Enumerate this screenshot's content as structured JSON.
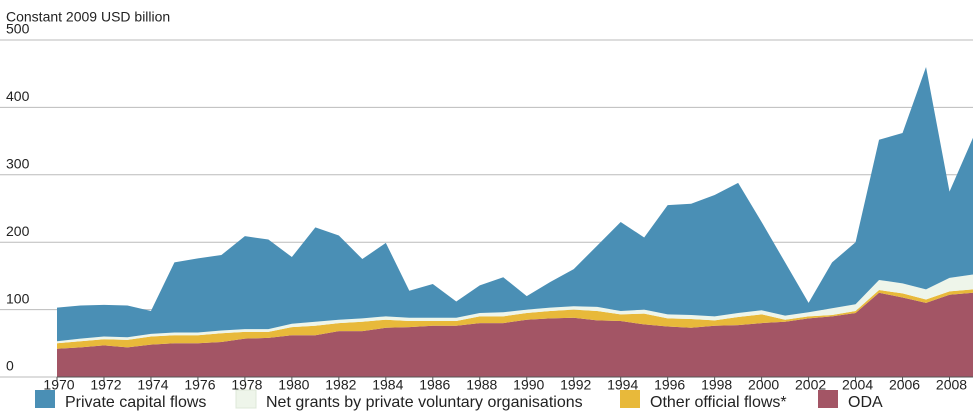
{
  "chart_data": {
    "type": "stacked_area",
    "y_label": "Constant 2009 USD billion",
    "x": [
      1970,
      1971,
      1972,
      1973,
      1974,
      1975,
      1976,
      1977,
      1978,
      1979,
      1980,
      1981,
      1982,
      1983,
      1984,
      1985,
      1986,
      1987,
      1988,
      1989,
      1990,
      1991,
      1992,
      1993,
      1994,
      1995,
      1996,
      1997,
      1998,
      1999,
      2000,
      2001,
      2002,
      2003,
      2004,
      2005,
      2006,
      2007,
      2008,
      2009
    ],
    "xlim": [
      1970,
      2009
    ],
    "xticks": [
      1970,
      1972,
      1974,
      1976,
      1978,
      1980,
      1982,
      1984,
      1986,
      1988,
      1990,
      1992,
      1994,
      1996,
      1998,
      2000,
      2002,
      2004,
      2006,
      2008
    ],
    "ylim": [
      0,
      500
    ],
    "yticks": [
      0,
      100,
      200,
      300,
      400,
      500
    ],
    "grid": true,
    "legend": "bottom",
    "series": [
      {
        "name": "Private capital flows",
        "color": "#4a8fb5",
        "values": [
          50,
          49,
          47,
          47,
          34,
          104,
          110,
          112,
          138,
          133,
          99,
          140,
          125,
          88,
          109,
          40,
          50,
          24,
          41,
          52,
          20,
          38,
          55,
          91,
          132,
          107,
          162,
          165,
          180,
          193,
          131,
          79,
          14,
          68,
          92,
          208,
          223,
          330,
          128,
          203
        ]
      },
      {
        "name": "Net grants by private voluntary organisations",
        "color": "#eef5ea",
        "values": [
          3,
          4,
          4,
          4,
          4,
          4,
          4,
          4,
          4,
          4,
          5,
          6,
          5,
          5,
          5,
          5,
          5,
          5,
          5,
          6,
          5,
          5,
          5,
          6,
          5,
          6,
          6,
          6,
          6,
          6,
          6,
          6,
          6,
          10,
          10,
          15,
          15,
          15,
          20,
          22
        ]
      },
      {
        "name": "Other official flows*",
        "color": "#e8b93a",
        "values": [
          8,
          9,
          9,
          11,
          12,
          12,
          12,
          13,
          10,
          9,
          12,
          14,
          12,
          14,
          12,
          9,
          7,
          7,
          10,
          10,
          10,
          11,
          12,
          14,
          10,
          16,
          12,
          13,
          8,
          12,
          13,
          3,
          3,
          2,
          3,
          4,
          6,
          5,
          5,
          5
        ]
      },
      {
        "name": "ODA",
        "color": "#a35565",
        "values": [
          42,
          44,
          47,
          44,
          48,
          50,
          50,
          52,
          57,
          58,
          62,
          62,
          68,
          68,
          73,
          74,
          76,
          76,
          80,
          80,
          85,
          87,
          88,
          84,
          83,
          78,
          75,
          73,
          76,
          77,
          80,
          82,
          87,
          90,
          95,
          125,
          118,
          110,
          122,
          125
        ]
      }
    ]
  }
}
